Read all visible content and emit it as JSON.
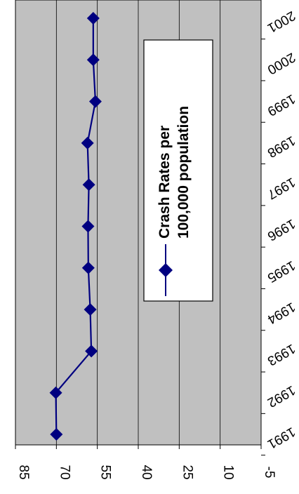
{
  "chart_data": {
    "type": "line",
    "title": "",
    "xlabel": "",
    "ylabel": "",
    "orientation": "rotated-90-clockwise",
    "x": [
      "1991",
      "1992",
      "1993",
      "1994",
      "1995",
      "1996",
      "1997",
      "1998",
      "1999",
      "2000",
      "2001"
    ],
    "x_tick_labels": [
      "1991",
      "1992",
      "1993",
      "1994",
      "1995",
      "1996",
      "1997",
      "1998",
      "1999",
      "2000",
      "2001"
    ],
    "y_tick_labels": [
      "-5",
      "10",
      "25",
      "40",
      "55",
      "70",
      "85"
    ],
    "ylim": [
      -5,
      85
    ],
    "grid": true,
    "legend_position": "center-right",
    "series": [
      {
        "name": "Crash Rates per 100,000 population",
        "color": "#000080",
        "marker": "diamond",
        "points": [
          {
            "x": "1991",
            "y": 70
          },
          {
            "x": "1992",
            "y": 70.2
          },
          {
            "x": "1993",
            "y": 57.2
          },
          {
            "x": "1994",
            "y": 57.6
          },
          {
            "x": "1995",
            "y": 58.3
          },
          {
            "x": "1996",
            "y": 58.4
          },
          {
            "x": "1997",
            "y": 58.1
          },
          {
            "x": "1998",
            "y": 58.6
          },
          {
            "x": "1999",
            "y": 55.7
          },
          {
            "x": "2000",
            "y": 56.5
          },
          {
            "x": "2001",
            "y": 56.5
          }
        ]
      }
    ]
  },
  "legend": {
    "line1": "Crash Rates per",
    "line2": "100,000 population"
  }
}
